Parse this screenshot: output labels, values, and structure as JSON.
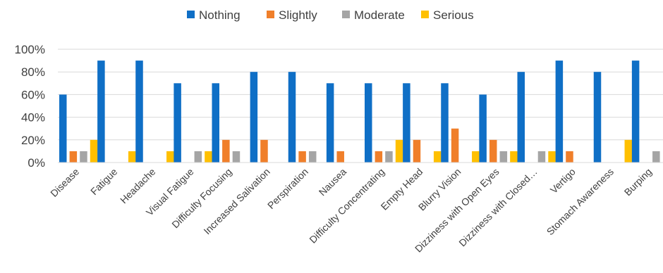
{
  "chart_data": {
    "type": "bar",
    "title": "",
    "xlabel": "",
    "ylabel": "",
    "ylim": [
      0,
      100
    ],
    "y_ticks": [
      "0%",
      "20%",
      "40%",
      "60%",
      "80%",
      "100%"
    ],
    "y_tick_values": [
      0,
      20,
      40,
      60,
      80,
      100
    ],
    "grid": true,
    "legend_position": "top",
    "categories": [
      "Disease",
      "Fatigue",
      "Headache",
      "Visual Fatigue",
      "Difficulty Focusing",
      "Increased Salivation",
      "Perspiration",
      "Nausea",
      "Difficulty Concentrating",
      "Empty Head",
      "Blurry Vision",
      "Dizziness with Open Eyes",
      "Dizziness with Closed…",
      "Vertigo",
      "Stomach Awareness",
      "Burping"
    ],
    "series": [
      {
        "name": "Nothing",
        "color": "#0F6FC6",
        "values": [
          60,
          90,
          90,
          70,
          70,
          80,
          80,
          70,
          70,
          70,
          70,
          60,
          80,
          90,
          80,
          90
        ]
      },
      {
        "name": "Slightly",
        "color": "#F07F2A",
        "values": [
          10,
          0,
          0,
          0,
          20,
          20,
          10,
          10,
          10,
          20,
          30,
          20,
          0,
          10,
          0,
          0
        ]
      },
      {
        "name": "Moderate",
        "color": "#A5A5A5",
        "values": [
          10,
          0,
          0,
          10,
          10,
          0,
          10,
          0,
          10,
          0,
          0,
          10,
          10,
          0,
          0,
          10
        ]
      },
      {
        "name": "Serious",
        "color": "#FFC000",
        "values": [
          20,
          10,
          10,
          10,
          0,
          0,
          0,
          0,
          20,
          10,
          10,
          10,
          10,
          0,
          20,
          0
        ]
      }
    ]
  }
}
